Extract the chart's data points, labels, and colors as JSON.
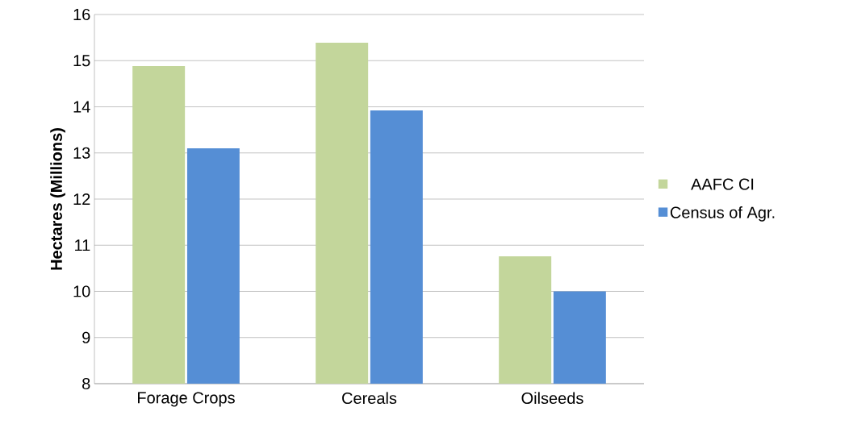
{
  "chart_data": {
    "type": "bar",
    "ylabel": "Hectares (Millions)",
    "categories": [
      "Forage Crops",
      "Cereals",
      "Oilseeds"
    ],
    "series": [
      {
        "name": "AAFC CI",
        "color": "#c3d69b",
        "values": [
          14.88,
          15.39,
          10.76
        ]
      },
      {
        "name": "Census of Agr.",
        "color": "#558ed5",
        "values": [
          13.1,
          13.92,
          10.0
        ]
      }
    ],
    "ylim": [
      8,
      16
    ],
    "yticks": [
      8,
      9,
      10,
      11,
      12,
      13,
      14,
      15,
      16
    ],
    "grid": "y",
    "legend": "right"
  }
}
